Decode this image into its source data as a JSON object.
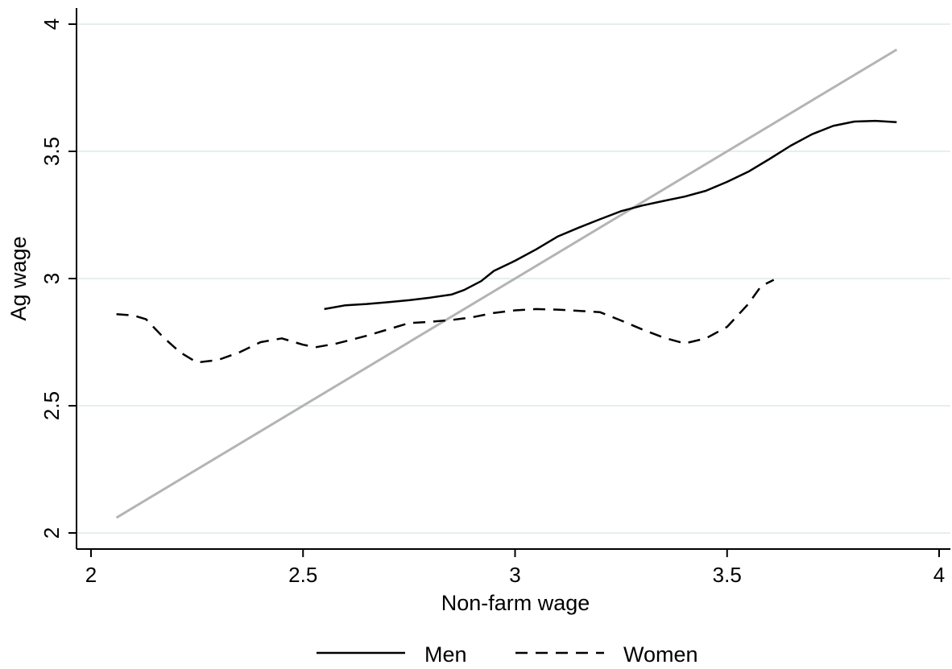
{
  "chart_data": {
    "type": "line",
    "title": "",
    "xlabel": "Non-farm wage",
    "ylabel": "Ag wage",
    "xlim": [
      2,
      4
    ],
    "ylim": [
      2,
      4
    ],
    "x_ticks": [
      2,
      2.5,
      3,
      3.5,
      4
    ],
    "x_tick_labels": [
      "2",
      "2.5",
      "3",
      "3.5",
      "4"
    ],
    "y_ticks": [
      2,
      2.5,
      3,
      3.5,
      4
    ],
    "y_tick_labels": [
      "2",
      "2.5",
      "3",
      "3.5",
      "4"
    ],
    "grid": "horizontal",
    "grid_color": "#dfe9ec",
    "legend_position": "bottom",
    "reference_line": {
      "color": "#b4b4b4",
      "points": [
        [
          2.06,
          2.06
        ],
        [
          3.9,
          3.9
        ]
      ]
    },
    "series": [
      {
        "name": "Men",
        "style": "solid",
        "color": "#000000",
        "points": [
          [
            2.55,
            2.88
          ],
          [
            2.6,
            2.895
          ],
          [
            2.65,
            2.9
          ],
          [
            2.7,
            2.907
          ],
          [
            2.75,
            2.915
          ],
          [
            2.8,
            2.925
          ],
          [
            2.85,
            2.937
          ],
          [
            2.88,
            2.955
          ],
          [
            2.92,
            2.99
          ],
          [
            2.95,
            3.03
          ],
          [
            3.0,
            3.07
          ],
          [
            3.05,
            3.115
          ],
          [
            3.1,
            3.165
          ],
          [
            3.15,
            3.2
          ],
          [
            3.2,
            3.233
          ],
          [
            3.25,
            3.265
          ],
          [
            3.3,
            3.287
          ],
          [
            3.35,
            3.305
          ],
          [
            3.4,
            3.322
          ],
          [
            3.45,
            3.345
          ],
          [
            3.5,
            3.38
          ],
          [
            3.55,
            3.42
          ],
          [
            3.6,
            3.47
          ],
          [
            3.65,
            3.522
          ],
          [
            3.7,
            3.567
          ],
          [
            3.75,
            3.6
          ],
          [
            3.8,
            3.617
          ],
          [
            3.85,
            3.62
          ],
          [
            3.9,
            3.615
          ]
        ]
      },
      {
        "name": "Women",
        "style": "dashed",
        "color": "#000000",
        "points": [
          [
            2.06,
            2.86
          ],
          [
            2.1,
            2.855
          ],
          [
            2.13,
            2.84
          ],
          [
            2.17,
            2.77
          ],
          [
            2.21,
            2.71
          ],
          [
            2.25,
            2.67
          ],
          [
            2.3,
            2.68
          ],
          [
            2.35,
            2.71
          ],
          [
            2.4,
            2.75
          ],
          [
            2.45,
            2.765
          ],
          [
            2.5,
            2.74
          ],
          [
            2.53,
            2.73
          ],
          [
            2.58,
            2.745
          ],
          [
            2.65,
            2.775
          ],
          [
            2.7,
            2.8
          ],
          [
            2.75,
            2.825
          ],
          [
            2.8,
            2.83
          ],
          [
            2.85,
            2.837
          ],
          [
            2.9,
            2.848
          ],
          [
            2.95,
            2.865
          ],
          [
            3.0,
            2.875
          ],
          [
            3.05,
            2.88
          ],
          [
            3.1,
            2.878
          ],
          [
            3.15,
            2.873
          ],
          [
            3.2,
            2.868
          ],
          [
            3.25,
            2.835
          ],
          [
            3.3,
            2.8
          ],
          [
            3.35,
            2.768
          ],
          [
            3.4,
            2.745
          ],
          [
            3.45,
            2.765
          ],
          [
            3.5,
            2.81
          ],
          [
            3.55,
            2.9
          ],
          [
            3.58,
            2.97
          ],
          [
            3.61,
            2.995
          ]
        ]
      }
    ]
  }
}
